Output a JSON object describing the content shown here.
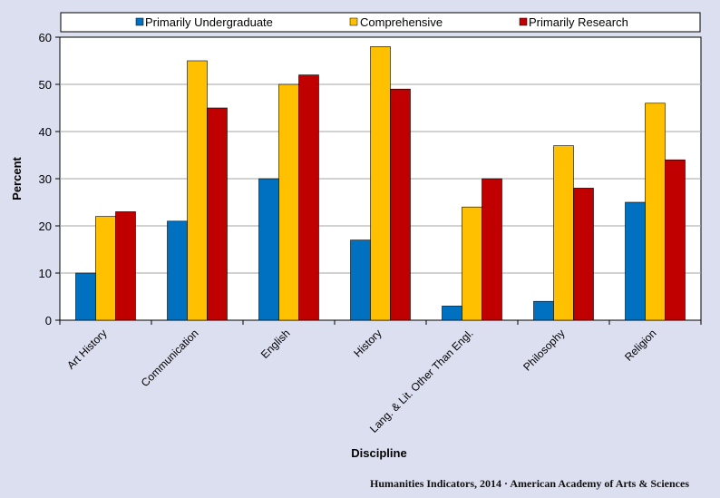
{
  "chart_data": {
    "type": "bar",
    "title": "",
    "xlabel": "Discipline",
    "ylabel": "Percent",
    "ylim": [
      0,
      60
    ],
    "yticks": [
      0,
      10,
      20,
      30,
      40,
      50,
      60
    ],
    "grid": true,
    "legend_position": "top",
    "categories": [
      "Art History",
      "Communication",
      "English",
      "History",
      "Lang. & Lit. Other Than Engl.",
      "Philosophy",
      "Religion"
    ],
    "series": [
      {
        "name": "Primarily Undergraduate",
        "color": "#0070c0",
        "values": [
          10,
          21,
          30,
          17,
          3,
          4,
          25
        ]
      },
      {
        "name": "Comprehensive",
        "color": "#ffc000",
        "values": [
          22,
          55,
          50,
          58,
          24,
          37,
          46
        ]
      },
      {
        "name": "Primarily Research",
        "color": "#c00000",
        "values": [
          23,
          45,
          52,
          49,
          30,
          28,
          34
        ]
      }
    ]
  },
  "credit": "Humanities  Indicators, 2014 · American Academy of Arts & Sciences"
}
